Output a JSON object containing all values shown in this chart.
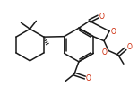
{
  "bg_color": "#ffffff",
  "line_color": "#1a1a1a",
  "line_width": 1.1,
  "figsize": [
    1.54,
    1.06
  ],
  "dpi": 100,
  "xlim": [
    0,
    154
  ],
  "ylim": [
    106,
    0
  ]
}
